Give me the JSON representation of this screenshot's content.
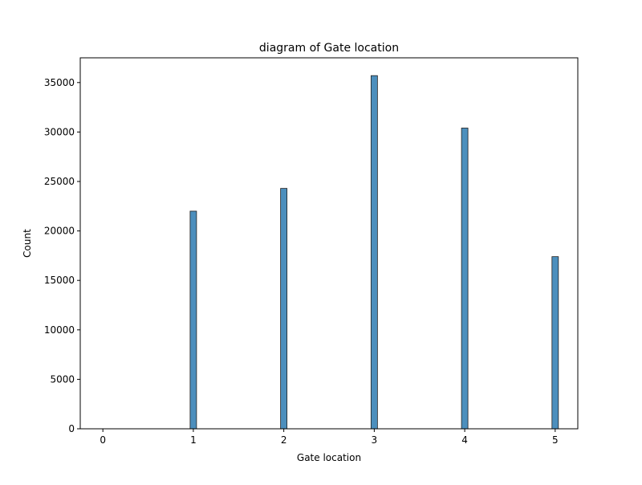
{
  "chart_data": {
    "type": "bar",
    "title": "diagram of Gate location",
    "xlabel": "Gate location",
    "ylabel": "Count",
    "x": [
      0,
      1,
      2,
      3,
      4,
      5
    ],
    "values": [
      0,
      22000,
      24300,
      35700,
      30400,
      17400
    ],
    "xlim": [
      -0.25,
      5.25
    ],
    "ylim": [
      0,
      37500
    ],
    "xticks": [
      0,
      1,
      2,
      3,
      4,
      5
    ],
    "yticks": [
      0,
      5000,
      10000,
      15000,
      20000,
      25000,
      30000,
      35000
    ],
    "bar_color": "#4c8fbd",
    "edge_color": "#1f1f1f",
    "grid": false,
    "legend": "none"
  }
}
